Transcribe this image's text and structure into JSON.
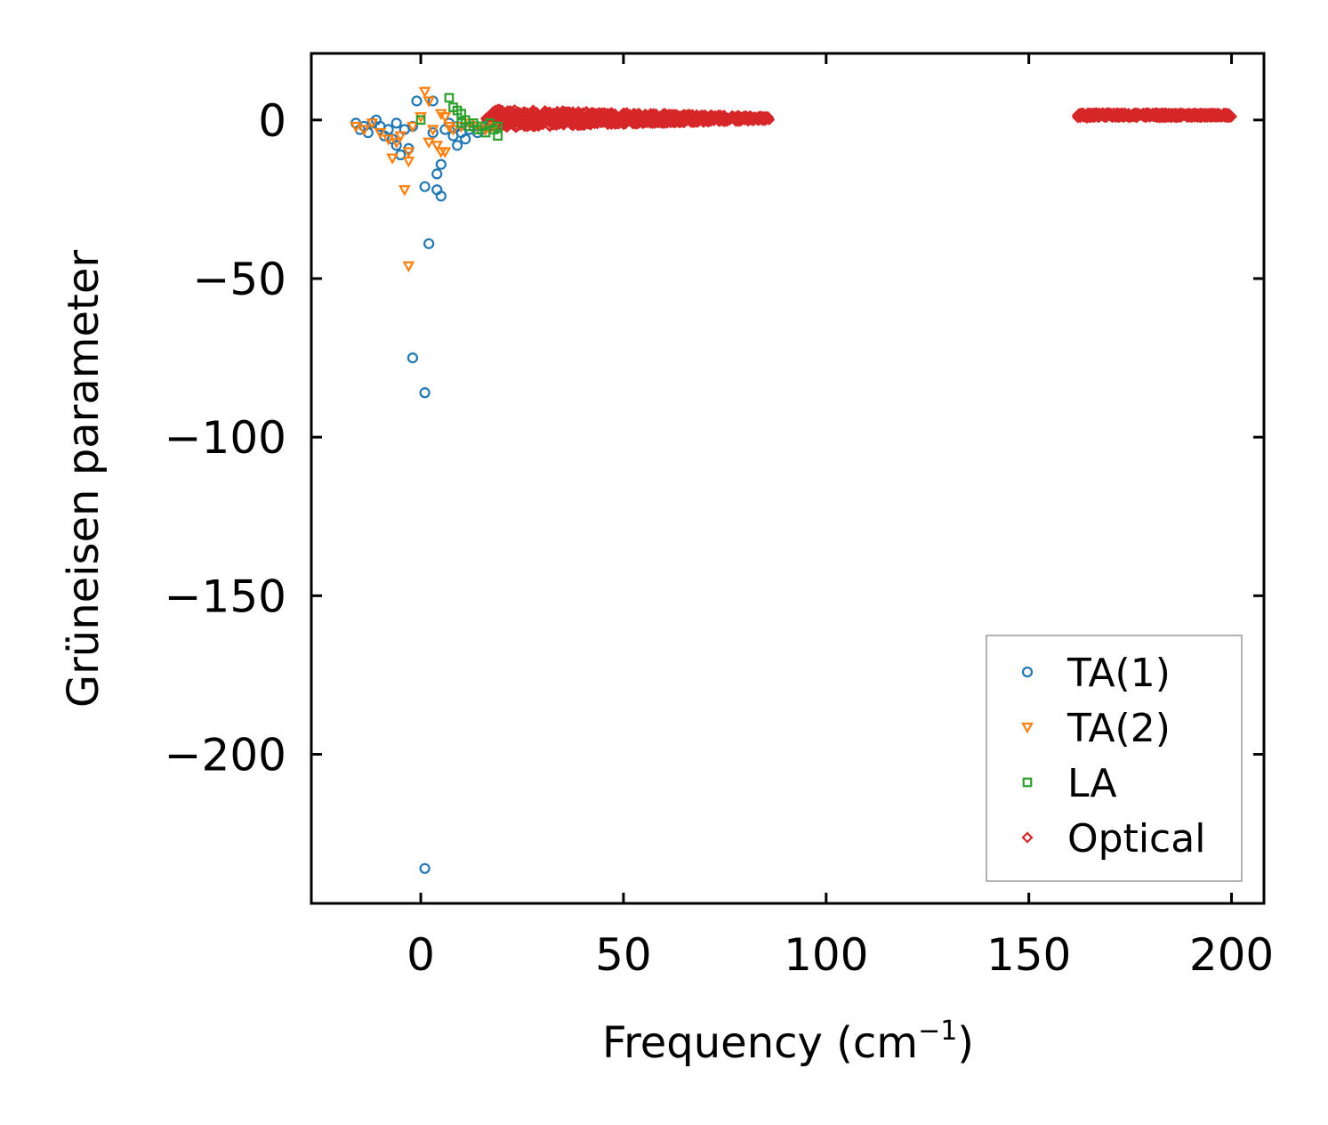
{
  "chart_data": {
    "type": "scatter",
    "title": "",
    "xlabel": "Frequency (cm",
    "xlabel_sup": "−1",
    "xlabel_end": ")",
    "ylabel": "Grüneisen parameter",
    "xlim": [
      -27,
      208
    ],
    "ylim": [
      -247,
      21
    ],
    "xticks": [
      0,
      50,
      100,
      150,
      200
    ],
    "xtick_labels": [
      "0",
      "50",
      "100",
      "150",
      "200"
    ],
    "yticks": [
      0,
      -50,
      -100,
      -150,
      -200
    ],
    "ytick_labels": [
      "0",
      "−50",
      "−100",
      "−150",
      "−200"
    ],
    "legend_position": "lower right",
    "series": [
      {
        "name": "TA(1)",
        "marker": "circle",
        "color": "#1f77b4",
        "points": [
          [
            -16,
            -1
          ],
          [
            -15,
            -3
          ],
          [
            -14,
            -2
          ],
          [
            -13,
            -4
          ],
          [
            -12,
            -1
          ],
          [
            -11,
            0
          ],
          [
            -10,
            -2
          ],
          [
            -9,
            -5
          ],
          [
            -8,
            -3
          ],
          [
            -7,
            -6
          ],
          [
            -6,
            -1
          ],
          [
            -6,
            -8
          ],
          [
            -5,
            -11
          ],
          [
            -4,
            -3
          ],
          [
            -3,
            -9
          ],
          [
            -2,
            -2
          ],
          [
            -1,
            6
          ],
          [
            -2,
            -75
          ],
          [
            1,
            -86
          ],
          [
            1,
            -21
          ],
          [
            1,
            -236
          ],
          [
            2,
            -39
          ],
          [
            3,
            -4
          ],
          [
            3,
            6
          ],
          [
            4,
            -22
          ],
          [
            4,
            -17
          ],
          [
            5,
            -24
          ],
          [
            5,
            -14
          ],
          [
            6,
            -3
          ],
          [
            7,
            -1
          ],
          [
            8,
            -5
          ],
          [
            9,
            -8
          ],
          [
            10,
            -4
          ],
          [
            11,
            -6
          ],
          [
            12,
            -3
          ],
          [
            13,
            -2
          ],
          [
            14,
            -4
          ],
          [
            15,
            -3
          ],
          [
            16,
            -2
          ],
          [
            9,
            -2
          ]
        ]
      },
      {
        "name": "TA(2)",
        "marker": "triangle-down",
        "color": "#ff7f0e",
        "points": [
          [
            -16,
            -2
          ],
          [
            -14,
            -3
          ],
          [
            -12,
            -1
          ],
          [
            -10,
            -4
          ],
          [
            -8,
            -6
          ],
          [
            -7,
            -12
          ],
          [
            -6,
            -7
          ],
          [
            -5,
            -5
          ],
          [
            -4,
            -22
          ],
          [
            -3,
            -10
          ],
          [
            -3,
            -13
          ],
          [
            -3,
            -46
          ],
          [
            -2,
            -2
          ],
          [
            0,
            1
          ],
          [
            1,
            9
          ],
          [
            2,
            6
          ],
          [
            2,
            -7
          ],
          [
            3,
            -3
          ],
          [
            4,
            -8
          ],
          [
            5,
            -10
          ],
          [
            5,
            2
          ],
          [
            6,
            1
          ],
          [
            6,
            -10
          ],
          [
            7,
            -2
          ],
          [
            8,
            -3
          ],
          [
            10,
            -2
          ],
          [
            12,
            -1
          ],
          [
            14,
            -2
          ],
          [
            16,
            -3
          ],
          [
            18,
            -2
          ]
        ]
      },
      {
        "name": "LA",
        "marker": "square",
        "color": "#2ca02c",
        "points": [
          [
            0,
            0
          ],
          [
            7,
            7
          ],
          [
            8,
            4
          ],
          [
            9,
            3
          ],
          [
            10,
            2
          ],
          [
            10,
            -1
          ],
          [
            11,
            0
          ],
          [
            12,
            -2
          ],
          [
            13,
            -1
          ],
          [
            14,
            -3
          ],
          [
            15,
            -2
          ],
          [
            16,
            -4
          ],
          [
            17,
            -1
          ],
          [
            18,
            -3
          ],
          [
            19,
            -2
          ],
          [
            19,
            -5
          ]
        ]
      },
      {
        "name": "Optical",
        "marker": "diamond",
        "color": "#d62728",
        "bands": [
          {
            "freq_start": 16,
            "freq_end": 86,
            "gamma_center": 0.5,
            "gamma_spread_start": 3.0,
            "gamma_spread_end": 0.6,
            "count": 900
          },
          {
            "freq_start": 162,
            "freq_end": 200,
            "gamma_center": 1.5,
            "gamma_spread_start": 0.8,
            "gamma_spread_end": 0.6,
            "count": 500
          }
        ]
      }
    ]
  }
}
